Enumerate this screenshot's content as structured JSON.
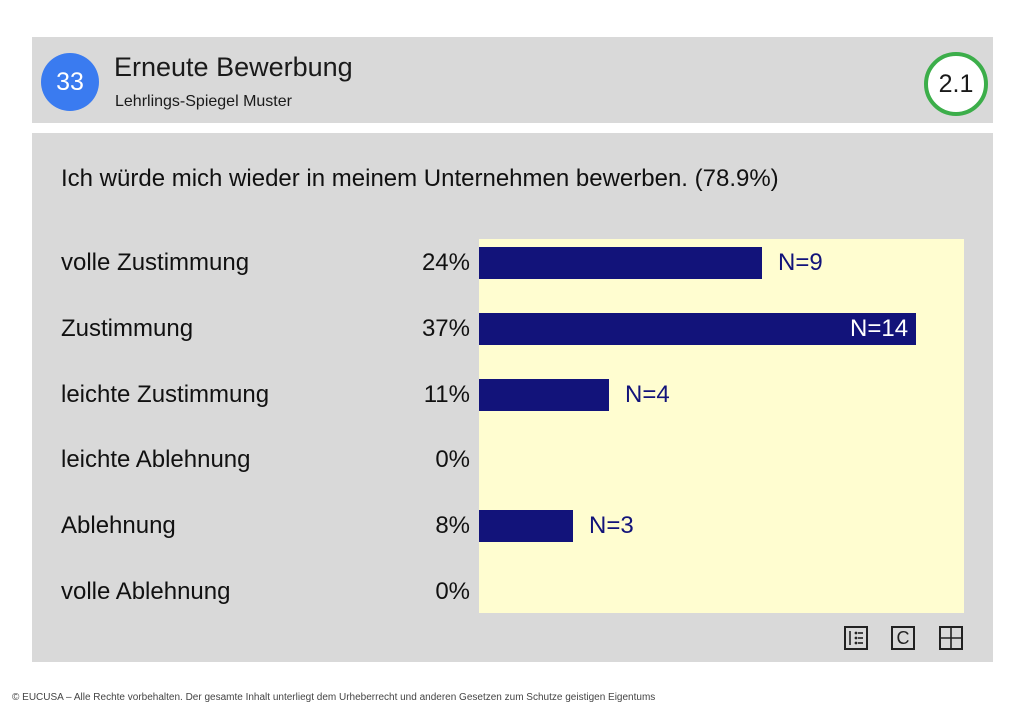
{
  "header": {
    "page_number": "33",
    "title": "Erneute Bewerbung",
    "subtitle": "Lehrlings-Spiegel Muster",
    "section": "2.1"
  },
  "question": "Ich würde mich wieder in meinem Unternehmen bewerben. (78.9%)",
  "chart_data": {
    "type": "bar",
    "orientation": "horizontal",
    "categories": [
      "volle Zustimmung",
      "Zustimmung",
      "leichte Zustimmung",
      "leichte Ablehnung",
      "Ablehnung",
      "volle Ablehnung"
    ],
    "percent_labels": [
      "24%",
      "37%",
      "11%",
      "0%",
      "8%",
      "0%"
    ],
    "values": [
      24,
      37,
      11,
      0,
      8,
      0
    ],
    "n_labels": [
      "N=9",
      "N=14",
      "N=4",
      "",
      "N=3",
      ""
    ],
    "n_values": [
      9,
      14,
      4,
      0,
      3,
      0
    ],
    "bar_color": "#12137a",
    "plot_background": "#fffdd0"
  },
  "footer": {
    "icons": [
      "list-icon",
      "copyright-icon",
      "grid-icon"
    ],
    "c_label": "C",
    "copyright": "© EUCUSA – Alle Rechte vorbehalten. Der gesamte Inhalt unterliegt dem Urheberrecht und anderen Gesetzen zum Schutze geistigen Eigentums"
  }
}
